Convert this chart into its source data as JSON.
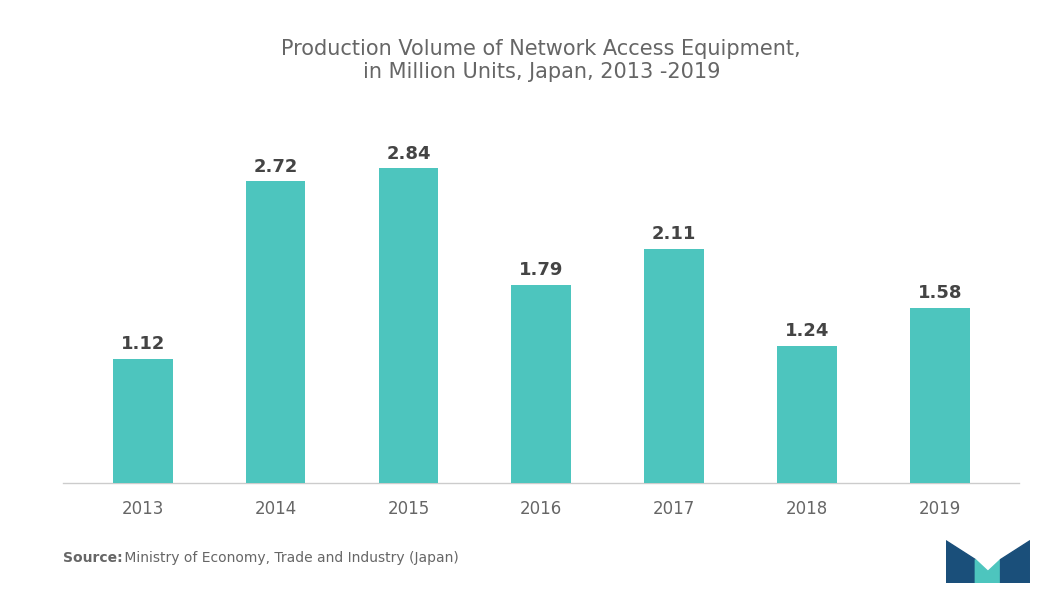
{
  "title": "Production Volume of Network Access Equipment,\nin Million Units, Japan, 2013 -2019",
  "categories": [
    "2013",
    "2014",
    "2015",
    "2016",
    "2017",
    "2018",
    "2019"
  ],
  "values": [
    1.12,
    2.72,
    2.84,
    1.79,
    2.11,
    1.24,
    1.58
  ],
  "bar_color": "#4DC5BE",
  "background_color": "#ffffff",
  "title_color": "#666666",
  "label_color": "#444444",
  "tick_color": "#666666",
  "source_bold": "Source:",
  "source_rest": " Ministry of Economy, Trade and Industry (Japan)",
  "title_fontsize": 15,
  "label_fontsize": 13,
  "tick_fontsize": 12,
  "source_fontsize": 10,
  "ylim": [
    0,
    3.4
  ]
}
